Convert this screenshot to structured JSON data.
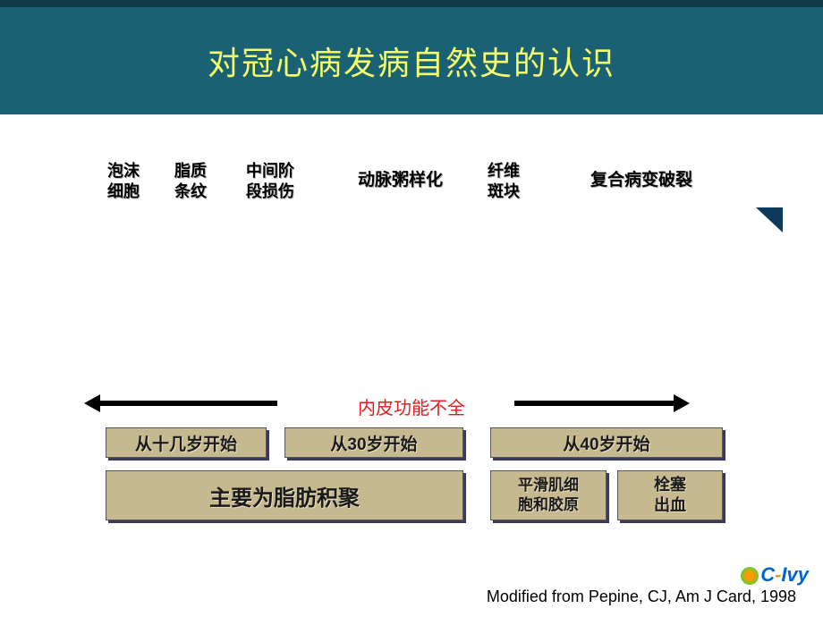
{
  "header": {
    "title": "对冠心病发病自然史的认识",
    "bg_color": "#1a6173",
    "top_border_color": "#0d3a45",
    "title_color": "#f5ff6b",
    "title_fontsize": 36
  },
  "stages": {
    "s1_line1": "泡沫",
    "s1_line2": "细胞",
    "s2_line1": "脂质",
    "s2_line2": "条纹",
    "s3_line1": "中间阶",
    "s3_line2": "段损伤",
    "s4": "动脉粥样化",
    "s5_line1": "纤维",
    "s5_line2": "斑块",
    "s6": "复合病变破裂",
    "text_color": "#000000",
    "fontsize": 18
  },
  "mid_label": {
    "text": "内皮功能不全",
    "color": "#e02020",
    "fontsize": 20
  },
  "arrows": {
    "color": "#000000",
    "thickness": 6
  },
  "age_boxes": {
    "a1": "从十几岁开始",
    "a2": "从30岁开始",
    "a3": "从40岁开始",
    "bg_color": "#c6b98f",
    "shadow_color": "#3a3a5a",
    "fontsize": 19
  },
  "desc_boxes": {
    "d1": "主要为脂肪积聚",
    "d2_line1": "平滑肌细",
    "d2_line2": "胞和胶原",
    "d3_line1": "栓塞",
    "d3_line2": "出血",
    "bg_color": "#c6b98f"
  },
  "citation": "Modified from Pepine, CJ, Am J Card, 1998",
  "logo": {
    "prefix": "C",
    "dash": "-",
    "suffix": "Ivy"
  },
  "triangle_color": "#0d3a5c"
}
